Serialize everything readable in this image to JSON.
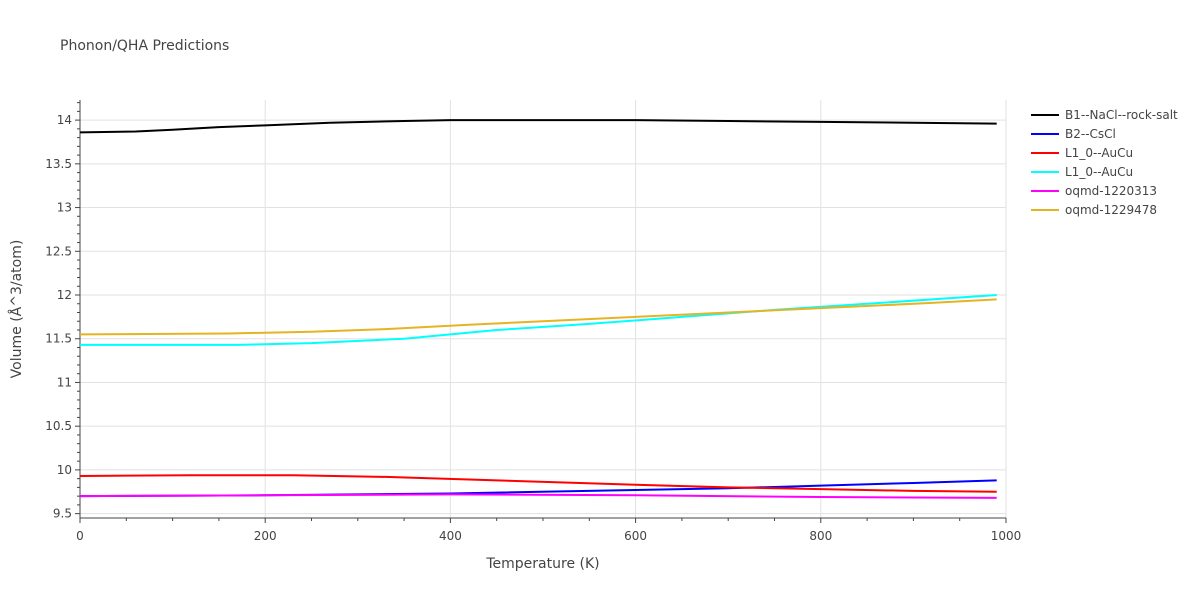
{
  "chart_data": {
    "type": "line",
    "title": "Phonon/QHA Predictions",
    "xlabel": "Temperature (K)",
    "ylabel": "Volume (Å^3/atom)",
    "xlim": [
      0,
      1000
    ],
    "ylim": [
      9.45,
      14.23
    ],
    "xticks": [
      0,
      200,
      400,
      600,
      800,
      1000
    ],
    "xtick_labels": [
      "0",
      "200",
      "400",
      "600",
      "800",
      "1000"
    ],
    "yticks": [
      9.5,
      10,
      10.5,
      11,
      11.5,
      12,
      12.5,
      13,
      13.5,
      14
    ],
    "ytick_labels": [
      "9.5",
      "10",
      "10.5",
      "11",
      "11.5",
      "12",
      "12.5",
      "13",
      "13.5",
      "14"
    ],
    "grid": true,
    "legend_position": "right",
    "series": [
      {
        "name": "B1--NaCl--rock-salt",
        "color": "#000000",
        "x": [
          0,
          60,
          100,
          150,
          200,
          270,
          350,
          400,
          530,
          600,
          700,
          800,
          900,
          990
        ],
        "y": [
          13.86,
          13.87,
          13.89,
          13.92,
          13.94,
          13.97,
          13.99,
          14.0,
          14.0,
          14.0,
          13.99,
          13.98,
          13.97,
          13.96
        ]
      },
      {
        "name": "B2--CsCl",
        "color": "#0000ff",
        "x": [
          0,
          200,
          400,
          600,
          700,
          800,
          900,
          990
        ],
        "y": [
          9.7,
          9.71,
          9.73,
          9.77,
          9.79,
          9.82,
          9.85,
          9.88
        ]
      },
      {
        "name": "L1_0--AuCu",
        "color": "#ff0000",
        "x": [
          0,
          120,
          230,
          330,
          450,
          600,
          700,
          800,
          900,
          990
        ],
        "y": [
          9.93,
          9.94,
          9.94,
          9.92,
          9.88,
          9.83,
          9.8,
          9.78,
          9.76,
          9.75
        ]
      },
      {
        "name": "L1_0--AuCu",
        "color": "#00ffff",
        "x": [
          0,
          100,
          170,
          250,
          350,
          450,
          550,
          650,
          750,
          850,
          990
        ],
        "y": [
          11.43,
          11.43,
          11.43,
          11.45,
          11.5,
          11.6,
          11.67,
          11.75,
          11.83,
          11.9,
          12.0
        ]
      },
      {
        "name": "oqmd-1220313",
        "color": "#ff00ff",
        "x": [
          0,
          200,
          400,
          600,
          800,
          990
        ],
        "y": [
          9.7,
          9.71,
          9.72,
          9.71,
          9.69,
          9.68
        ]
      },
      {
        "name": "oqmd-1229478",
        "color": "#e6b422",
        "x": [
          0,
          160,
          250,
          330,
          420,
          520,
          620,
          720,
          820,
          920,
          990
        ],
        "y": [
          11.55,
          11.56,
          11.58,
          11.61,
          11.66,
          11.71,
          11.76,
          11.81,
          11.86,
          11.91,
          11.95
        ]
      }
    ]
  }
}
